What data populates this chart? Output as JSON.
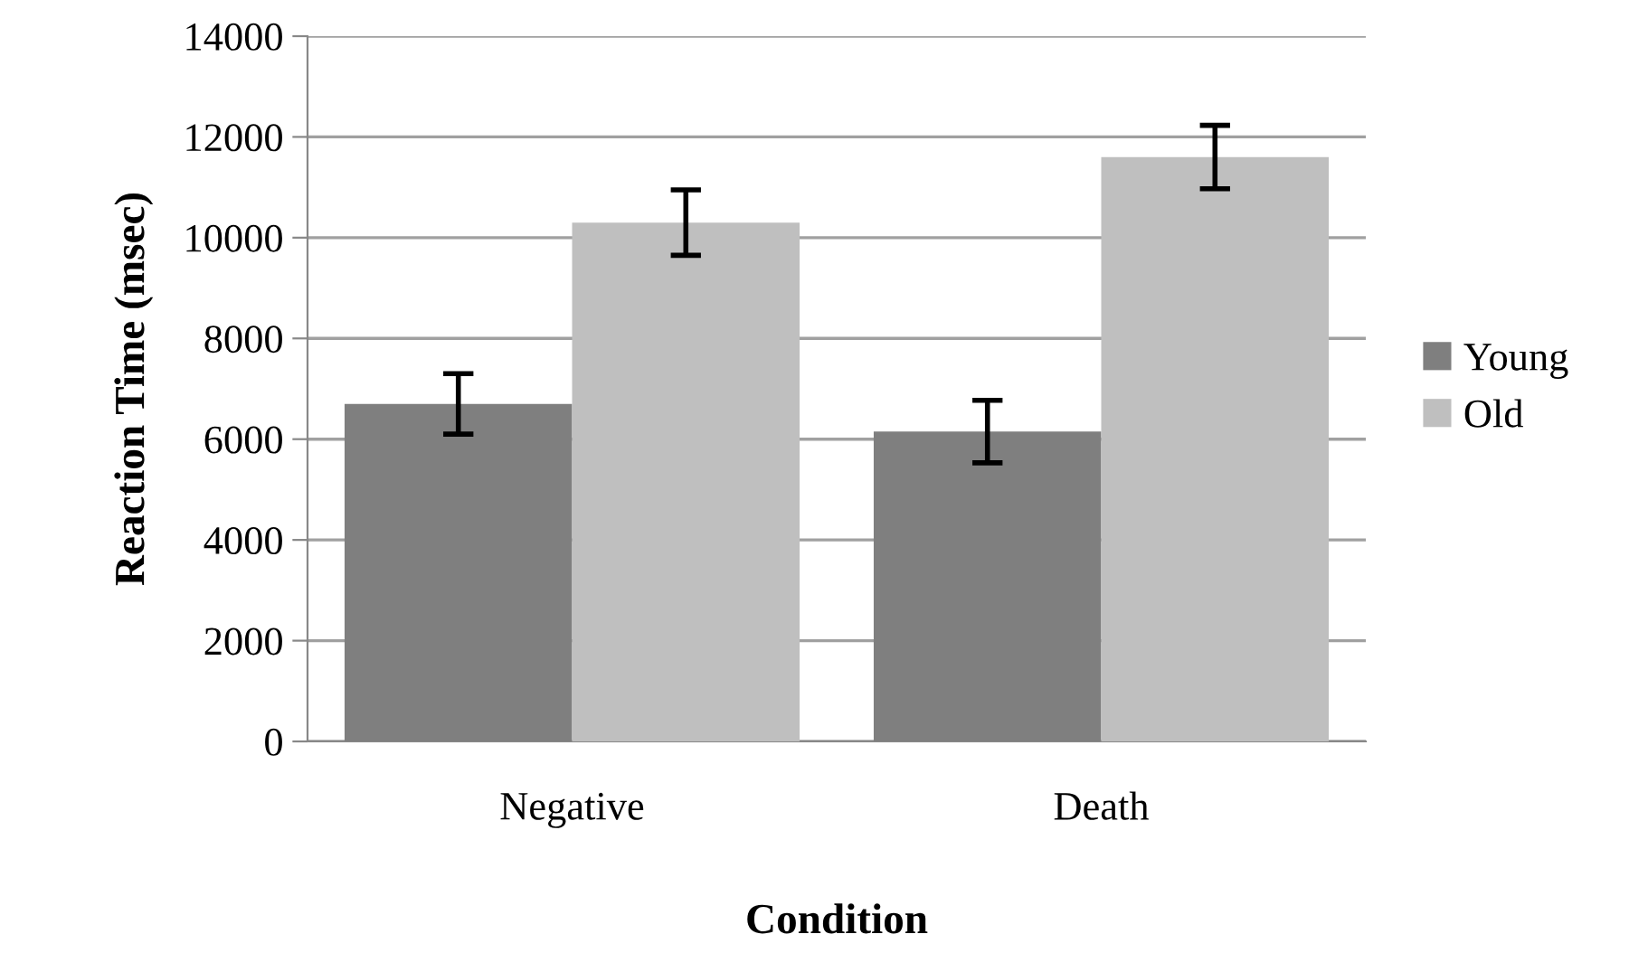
{
  "chart_data": {
    "type": "bar",
    "xlabel": "Condition",
    "ylabel": "Reaction Time (msec)",
    "categories": [
      "Negative",
      "Death"
    ],
    "series": [
      {
        "name": "Young",
        "color": "#7f7f7f",
        "values": [
          6700,
          6150
        ],
        "errors": [
          600,
          620
        ]
      },
      {
        "name": "Old",
        "color": "#bfbfbf",
        "values": [
          10300,
          11600
        ],
        "errors": [
          650,
          630
        ]
      }
    ],
    "ylim": [
      0,
      14000
    ],
    "yticks": [
      0,
      2000,
      4000,
      6000,
      8000,
      10000,
      12000,
      14000
    ],
    "grid": "y",
    "legend": "right"
  }
}
